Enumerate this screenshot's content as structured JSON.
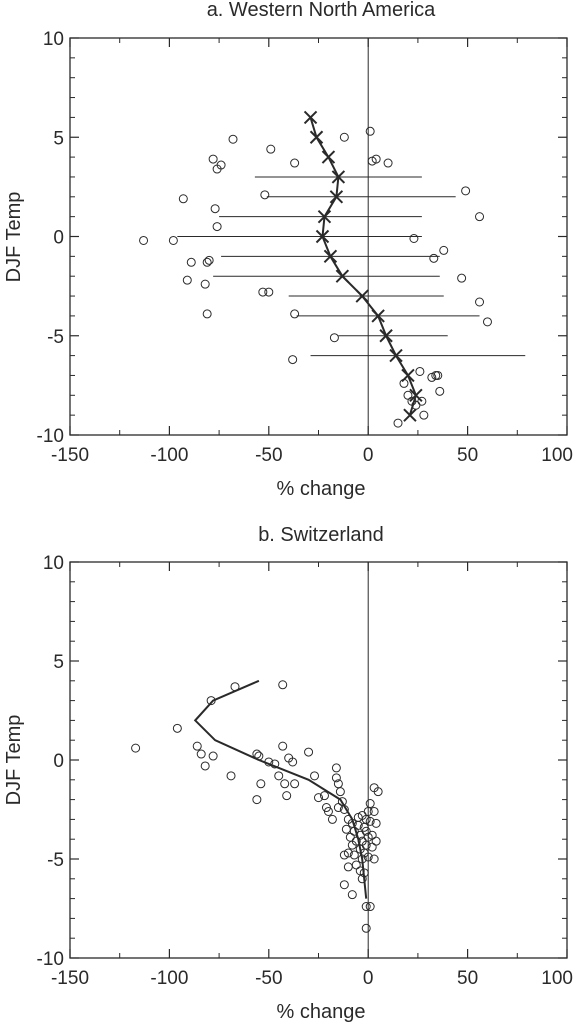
{
  "chart_data": [
    {
      "type": "scatter",
      "title": "a. Western North America",
      "xlabel": "% change",
      "ylabel": "DJF Temp",
      "xlim": [
        -150,
        100
      ],
      "ylim": [
        -10,
        10
      ],
      "xticks": [
        "-150",
        "-100",
        "-50",
        "0",
        "50",
        "100"
      ],
      "yticks": [
        "-10",
        "-5",
        "0",
        "5",
        "10"
      ],
      "grid": false,
      "points": [
        [
          -68,
          4.9
        ],
        [
          -49,
          4.4
        ],
        [
          -12,
          5.0
        ],
        [
          1,
          5.3
        ],
        [
          -78,
          3.9
        ],
        [
          -76,
          3.4
        ],
        [
          -74,
          3.6
        ],
        [
          -37,
          3.7
        ],
        [
          2,
          3.8
        ],
        [
          4,
          3.9
        ],
        [
          10,
          3.7
        ],
        [
          -93,
          1.9
        ],
        [
          -52,
          2.1
        ],
        [
          49,
          2.3
        ],
        [
          -77,
          1.4
        ],
        [
          -76,
          0.5
        ],
        [
          56,
          1.0
        ],
        [
          -113,
          -0.2
        ],
        [
          -98,
          -0.2
        ],
        [
          23,
          -0.1
        ],
        [
          38,
          -0.7
        ],
        [
          -89,
          -1.3
        ],
        [
          -80,
          -1.2
        ],
        [
          -81,
          -1.3
        ],
        [
          33,
          -1.1
        ],
        [
          -91,
          -2.2
        ],
        [
          -82,
          -2.4
        ],
        [
          47,
          -2.1
        ],
        [
          -53,
          -2.8
        ],
        [
          -50,
          -2.8
        ],
        [
          56,
          -3.3
        ],
        [
          -81,
          -3.9
        ],
        [
          -37,
          -3.9
        ],
        [
          60,
          -4.3
        ],
        [
          -17,
          -5.1
        ],
        [
          -38,
          -6.2
        ],
        [
          18,
          -7.4
        ],
        [
          26,
          -6.8
        ],
        [
          32,
          -7.1
        ],
        [
          34,
          -7.0
        ],
        [
          35,
          -7.0
        ],
        [
          36,
          -7.8
        ],
        [
          20,
          -8.0
        ],
        [
          22,
          -8.3
        ],
        [
          24,
          -8.5
        ],
        [
          27,
          -8.3
        ],
        [
          28,
          -9.0
        ],
        [
          15,
          -9.4
        ]
      ],
      "profile": {
        "y": [
          6,
          5,
          4,
          3,
          2,
          1,
          0,
          -1,
          -2,
          -3,
          -4,
          -5,
          -6,
          -7,
          -8,
          -9
        ],
        "x": [
          -29,
          -26,
          -20,
          -15,
          -16,
          -22,
          -23,
          -19,
          -13,
          -3,
          5,
          9,
          14,
          20,
          24,
          21
        ]
      },
      "ranges": [
        {
          "y": 3,
          "xmin": -57,
          "xmax": 27
        },
        {
          "y": 2,
          "xmin": -51,
          "xmax": 44
        },
        {
          "y": 1,
          "xmin": -75,
          "xmax": 27
        },
        {
          "y": 0,
          "xmin": -96,
          "xmax": 27
        },
        {
          "y": -1,
          "xmin": -74,
          "xmax": 36
        },
        {
          "y": -2,
          "xmin": -78,
          "xmax": 36
        },
        {
          "y": -3,
          "xmin": -40,
          "xmax": 38
        },
        {
          "y": -4,
          "xmin": -36,
          "xmax": 56
        },
        {
          "y": -5,
          "xmin": -15,
          "xmax": 40
        },
        {
          "y": -6,
          "xmin": -29,
          "xmax": 79
        }
      ]
    },
    {
      "type": "scatter",
      "title": "b. Switzerland",
      "xlabel": "% change",
      "ylabel": "DJF Temp",
      "xlim": [
        -150,
        100
      ],
      "ylim": [
        -10,
        10
      ],
      "xticks": [
        "-150",
        "-100",
        "-50",
        "0",
        "50",
        "100"
      ],
      "yticks": [
        "-10",
        "-5",
        "0",
        "5",
        "10"
      ],
      "grid": false,
      "points": [
        [
          -117,
          0.6
        ],
        [
          -96,
          1.6
        ],
        [
          -79,
          3.0
        ],
        [
          -67,
          3.7
        ],
        [
          -43,
          3.8
        ],
        [
          -86,
          0.7
        ],
        [
          -84,
          0.3
        ],
        [
          -82,
          -0.3
        ],
        [
          -78,
          0.2
        ],
        [
          -69,
          -0.8
        ],
        [
          -56,
          0.3
        ],
        [
          -56,
          -2.0
        ],
        [
          -55,
          0.2
        ],
        [
          -54,
          -1.2
        ],
        [
          -50,
          -0.1
        ],
        [
          -47,
          -0.2
        ],
        [
          -45,
          -0.8
        ],
        [
          -43,
          0.7
        ],
        [
          -42,
          -1.2
        ],
        [
          -41,
          -1.8
        ],
        [
          -40,
          0.1
        ],
        [
          -38,
          -0.1
        ],
        [
          -37,
          -1.2
        ],
        [
          -30,
          0.4
        ],
        [
          -27,
          -0.8
        ],
        [
          -25,
          -1.9
        ],
        [
          -22,
          -1.8
        ],
        [
          -21,
          -2.4
        ],
        [
          -20,
          -2.6
        ],
        [
          -16,
          -0.4
        ],
        [
          -16,
          -0.9
        ],
        [
          -15,
          -1.2
        ],
        [
          -14,
          -1.6
        ],
        [
          -13,
          -2.1
        ],
        [
          -12,
          -2.5
        ],
        [
          -11,
          -3.5
        ],
        [
          -10,
          -3.0
        ],
        [
          -9,
          -3.9
        ],
        [
          -8,
          -3.2
        ],
        [
          -8,
          -4.3
        ],
        [
          -7,
          -3.6
        ],
        [
          -7,
          -4.8
        ],
        [
          -6,
          -4.1
        ],
        [
          -6,
          -5.3
        ],
        [
          -5,
          -3.3
        ],
        [
          -5,
          -2.9
        ],
        [
          -4,
          -3.8
        ],
        [
          -4,
          -4.5
        ],
        [
          -4,
          -5.6
        ],
        [
          -3,
          -2.8
        ],
        [
          -3,
          -4.1
        ],
        [
          -3,
          -5.0
        ],
        [
          -3,
          -6.0
        ],
        [
          -2,
          -3.4
        ],
        [
          -2,
          -4.7
        ],
        [
          -2,
          -5.7
        ],
        [
          -1,
          -3.0
        ],
        [
          -1,
          -4.3
        ],
        [
          -1,
          -3.6
        ],
        [
          0,
          -2.6
        ],
        [
          0,
          -3.9
        ],
        [
          0,
          -4.9
        ],
        [
          1,
          -2.2
        ],
        [
          1,
          -3.1
        ],
        [
          2,
          -3.8
        ],
        [
          2,
          -4.4
        ],
        [
          3,
          -1.4
        ],
        [
          3,
          -2.6
        ],
        [
          3,
          -5.0
        ],
        [
          4,
          -3.2
        ],
        [
          4,
          -4.1
        ],
        [
          5,
          -1.6
        ],
        [
          -10,
          -4.7
        ],
        [
          -12,
          -4.8
        ],
        [
          -12,
          -6.3
        ],
        [
          -8,
          -6.8
        ],
        [
          -1,
          -7.4
        ],
        [
          1,
          -7.4
        ],
        [
          -1,
          -8.5
        ],
        [
          -15,
          -2.4
        ],
        [
          -18,
          -3.0
        ],
        [
          -10,
          -5.4
        ]
      ],
      "profile": {
        "y": [
          4,
          3,
          2,
          1,
          0,
          -1,
          -2,
          -3,
          -4,
          -5,
          -6,
          -7
        ],
        "x": [
          -55,
          -78,
          -87,
          -77,
          -55,
          -30,
          -14,
          -8,
          -5,
          -3,
          -2,
          -1
        ]
      }
    }
  ]
}
